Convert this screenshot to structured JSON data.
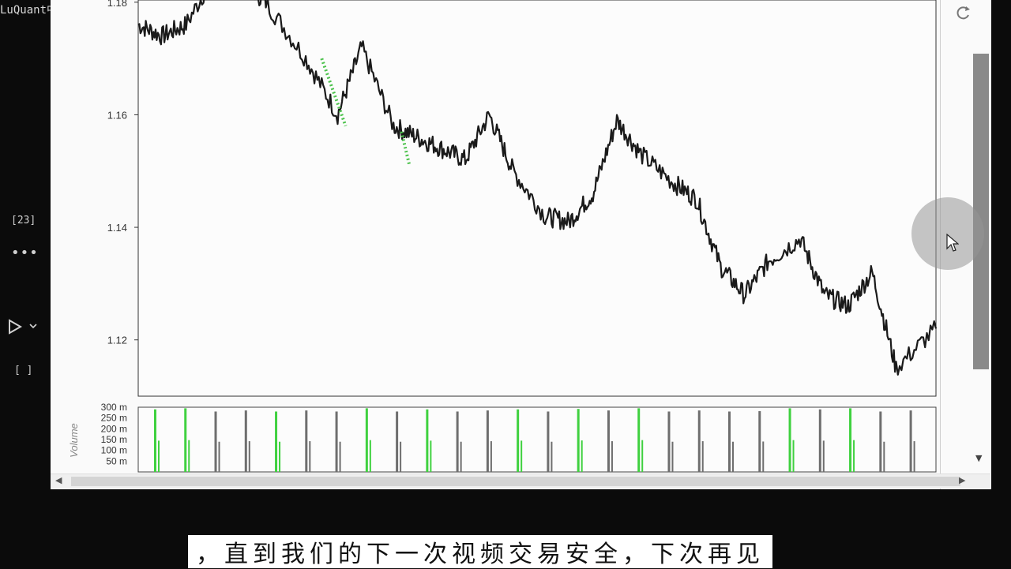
{
  "watermark": "LuQuant中文台",
  "cell": {
    "execution_count": "[23]",
    "more_label": "•••",
    "empty_prompt": "[ ]"
  },
  "subtitle": "，直到我们的下一次视频交易安全，下次再见",
  "chart_data": [
    {
      "type": "line",
      "title": "",
      "xlabel": "",
      "ylabel": "",
      "ylim": [
        1.11,
        1.186
      ],
      "yticks": [
        "1.18",
        "1.16",
        "1.14",
        "1.12"
      ],
      "ytick_values": [
        1.18,
        1.16,
        1.14,
        1.12
      ],
      "series": [
        {
          "color": "#1a1a1a",
          "x": [
            0,
            3,
            6,
            10,
            13,
            16,
            21,
            25,
            28,
            32,
            35,
            38,
            41,
            44,
            47,
            51,
            54,
            57,
            60,
            63,
            67,
            70,
            73,
            76,
            79,
            83,
            86,
            89,
            92,
            95,
            100
          ],
          "values": [
            1.176,
            1.174,
            1.176,
            1.186,
            1.184,
            1.18,
            1.17,
            1.16,
            1.172,
            1.158,
            1.156,
            1.154,
            1.152,
            1.16,
            1.15,
            1.142,
            1.141,
            1.146,
            1.159,
            1.153,
            1.148,
            1.145,
            1.133,
            1.128,
            1.134,
            1.138,
            1.128,
            1.126,
            1.132,
            1.115,
            1.122
          ]
        }
      ],
      "highlights": [
        {
          "color": "#4cc24c",
          "x": [
            23,
            26
          ],
          "values": [
            1.17,
            1.158
          ]
        },
        {
          "color": "#4cc24c",
          "x": [
            33,
            34
          ],
          "values": [
            1.157,
            1.151
          ]
        }
      ]
    },
    {
      "type": "bar",
      "ylabel": "Volume",
      "ylim": [
        0,
        300000000
      ],
      "yticks": [
        "300 m",
        "250 m",
        "200 m",
        "150 m",
        "100 m",
        "50 m"
      ],
      "ytick_values": [
        300000000,
        250000000,
        200000000,
        150000000,
        100000000,
        50000000
      ],
      "colors": {
        "up": "#3fd13f",
        "down": "#6e6e6e"
      },
      "bars": [
        {
          "value": 290000000,
          "dir": "up"
        },
        {
          "value": 295000000,
          "dir": "up"
        },
        {
          "value": 280000000,
          "dir": "down"
        },
        {
          "value": 285000000,
          "dir": "down"
        },
        {
          "value": 280000000,
          "dir": "up"
        },
        {
          "value": 285000000,
          "dir": "down"
        },
        {
          "value": 280000000,
          "dir": "down"
        },
        {
          "value": 295000000,
          "dir": "up"
        },
        {
          "value": 280000000,
          "dir": "down"
        },
        {
          "value": 290000000,
          "dir": "up"
        },
        {
          "value": 280000000,
          "dir": "down"
        },
        {
          "value": 285000000,
          "dir": "down"
        },
        {
          "value": 290000000,
          "dir": "up"
        },
        {
          "value": 280000000,
          "dir": "down"
        },
        {
          "value": 292000000,
          "dir": "up"
        },
        {
          "value": 285000000,
          "dir": "down"
        },
        {
          "value": 295000000,
          "dir": "up"
        },
        {
          "value": 280000000,
          "dir": "down"
        },
        {
          "value": 285000000,
          "dir": "down"
        },
        {
          "value": 280000000,
          "dir": "down"
        },
        {
          "value": 282000000,
          "dir": "down"
        },
        {
          "value": 295000000,
          "dir": "up"
        },
        {
          "value": 290000000,
          "dir": "down"
        },
        {
          "value": 295000000,
          "dir": "up"
        },
        {
          "value": 280000000,
          "dir": "down"
        },
        {
          "value": 285000000,
          "dir": "down"
        }
      ]
    }
  ]
}
